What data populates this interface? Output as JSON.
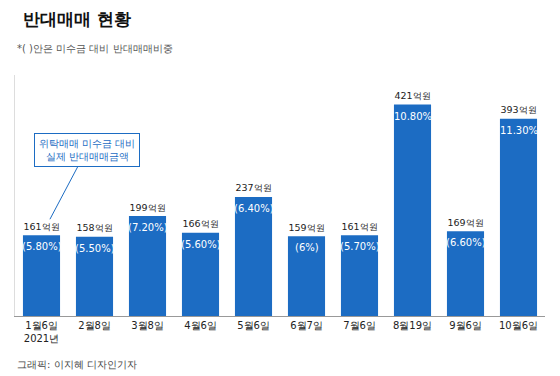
{
  "chart_data": {
    "type": "bar",
    "title": "반대매매 현황",
    "subtitle": "*( )안은 미수금 대비 반대매매비중",
    "annotation": [
      "위탁매매 미수금 대비",
      "실제 반대매매금액"
    ],
    "credit": "그래픽: 이지혜 디자인기자",
    "categories": [
      "1월6일",
      "2월8일",
      "3월8일",
      "4월6일",
      "5월6일",
      "6월7일",
      "7월6일",
      "8월19일",
      "9월6일",
      "10월6일"
    ],
    "year_label": {
      "category": "1월6일",
      "text": "2021년"
    },
    "values": [
      161,
      158,
      199,
      166,
      237,
      159,
      161,
      421,
      169,
      393
    ],
    "value_labels": [
      "161억원",
      "158억원",
      "199억원",
      "166억원",
      "237억원",
      "159억원",
      "161억원",
      "421억원",
      "169억원",
      "393억원"
    ],
    "ratios": [
      5.8,
      5.5,
      7.2,
      5.6,
      6.4,
      6,
      5.7,
      10.8,
      6.6,
      11.3
    ],
    "ratio_labels": [
      "(5.80%)",
      "(5.50%)",
      "(7.20%)",
      "(5.60%)",
      "(6.40%)",
      "(6%)",
      "(5.70%)",
      "(10.80%)",
      "(6.60%)",
      "(11.30%)"
    ],
    "color": "#1c6cc3",
    "ylim": [
      0,
      480
    ],
    "yticks": [],
    "grid": false,
    "data_labels": true,
    "tick_labels": "x"
  }
}
